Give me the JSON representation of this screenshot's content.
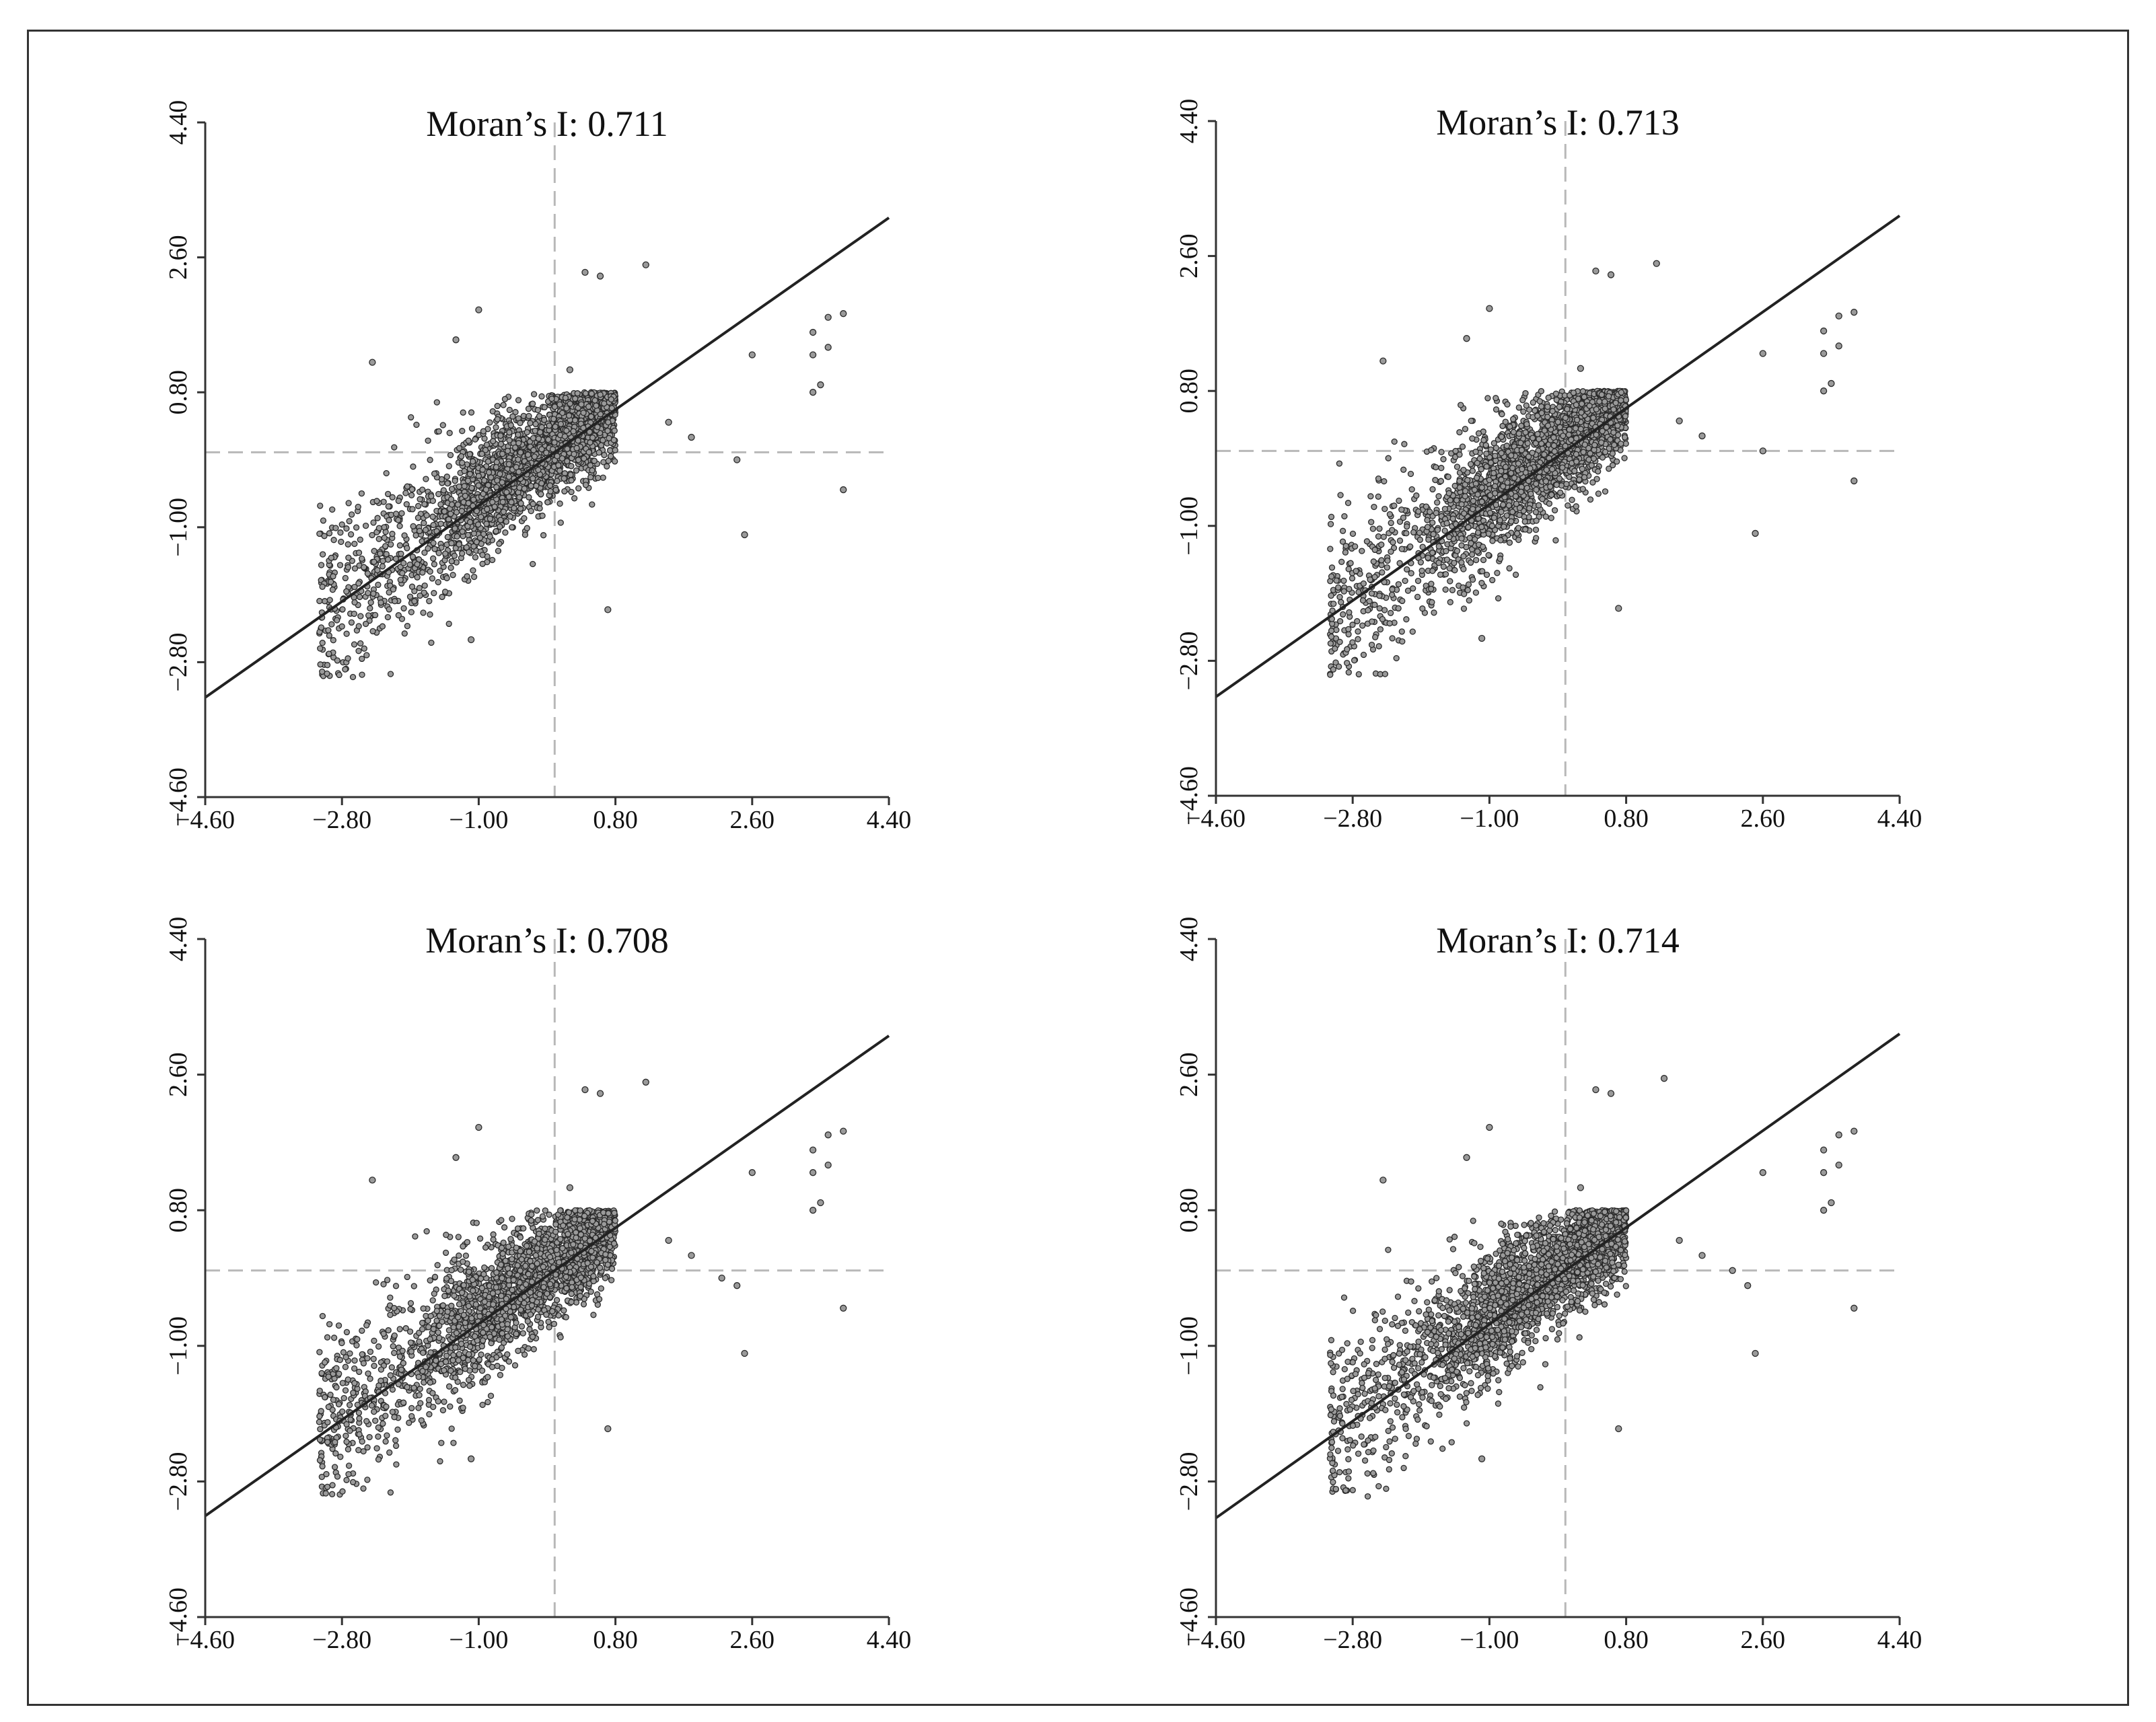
{
  "chart_data": [
    {
      "type": "scatter",
      "title": "Moran’s I: 0.711",
      "xlabel": "",
      "ylabel": "",
      "xlim": [
        -4.6,
        4.4
      ],
      "ylim": [
        -4.6,
        4.4
      ],
      "xticks": [
        "−4.60",
        "−2.80",
        "−1.00",
        "0.80",
        "2.60",
        "4.40"
      ],
      "yticks": [
        "−4.60",
        "−2.80",
        "−1.00",
        "0.80",
        "2.60",
        "4.40"
      ],
      "reference_lines": {
        "x": 0,
        "y": 0,
        "style": "dashed"
      },
      "fit_line": {
        "slope": 0.711,
        "intercept": 0
      },
      "outliers": [
        [
          0.4,
          2.4
        ],
        [
          0.6,
          2.35
        ],
        [
          1.2,
          2.5
        ],
        [
          -1.0,
          1.9
        ],
        [
          -1.3,
          1.5
        ],
        [
          0.2,
          1.1
        ],
        [
          -2.4,
          1.2
        ],
        [
          1.5,
          0.4
        ],
        [
          1.8,
          0.2
        ],
        [
          2.4,
          -0.1
        ],
        [
          2.6,
          1.3
        ],
        [
          3.4,
          1.6
        ],
        [
          3.6,
          1.8
        ],
        [
          3.8,
          1.85
        ],
        [
          3.4,
          1.3
        ],
        [
          3.6,
          1.4
        ],
        [
          3.4,
          0.8
        ],
        [
          3.5,
          0.9
        ],
        [
          3.8,
          -0.5
        ],
        [
          2.5,
          -1.1
        ],
        [
          -1.1,
          -2.5
        ],
        [
          0.7,
          -2.1
        ]
      ],
      "grid": false,
      "legend": "none"
    },
    {
      "type": "scatter",
      "title": "Moran’s I: 0.713",
      "xlabel": "",
      "ylabel": "",
      "xlim": [
        -4.6,
        4.4
      ],
      "ylim": [
        -4.6,
        4.4
      ],
      "xticks": [
        "−4.60",
        "−2.80",
        "−1.00",
        "0.80",
        "2.60",
        "4.40"
      ],
      "yticks": [
        "−4.60",
        "−2.80",
        "−1.00",
        "0.80",
        "2.60",
        "4.40"
      ],
      "reference_lines": {
        "x": 0,
        "y": 0,
        "style": "dashed"
      },
      "fit_line": {
        "slope": 0.713,
        "intercept": 0
      },
      "outliers": [
        [
          0.4,
          2.4
        ],
        [
          0.6,
          2.35
        ],
        [
          1.2,
          2.5
        ],
        [
          -1.0,
          1.9
        ],
        [
          -1.3,
          1.5
        ],
        [
          0.2,
          1.1
        ],
        [
          -2.4,
          1.2
        ],
        [
          1.5,
          0.4
        ],
        [
          1.8,
          0.2
        ],
        [
          2.6,
          0.0
        ],
        [
          2.6,
          1.3
        ],
        [
          3.4,
          1.6
        ],
        [
          3.6,
          1.8
        ],
        [
          3.8,
          1.85
        ],
        [
          3.4,
          1.3
        ],
        [
          3.6,
          1.4
        ],
        [
          3.4,
          0.8
        ],
        [
          3.5,
          0.9
        ],
        [
          3.8,
          -0.4
        ],
        [
          2.5,
          -1.1
        ],
        [
          -1.1,
          -2.5
        ],
        [
          0.7,
          -2.1
        ]
      ],
      "grid": false,
      "legend": "none"
    },
    {
      "type": "scatter",
      "title": "Moran’s I: 0.708",
      "xlabel": "",
      "ylabel": "",
      "xlim": [
        -4.6,
        4.4
      ],
      "ylim": [
        -4.6,
        4.4
      ],
      "xticks": [
        "−4.60",
        "−2.80",
        "−1.00",
        "0.80",
        "2.60",
        "4.40"
      ],
      "yticks": [
        "−4.60",
        "−2.80",
        "−1.00",
        "0.80",
        "2.60",
        "4.40"
      ],
      "reference_lines": {
        "x": 0,
        "y": 0,
        "style": "dashed"
      },
      "fit_line": {
        "slope": 0.708,
        "intercept": 0
      },
      "outliers": [
        [
          0.4,
          2.4
        ],
        [
          0.6,
          2.35
        ],
        [
          1.2,
          2.5
        ],
        [
          -1.0,
          1.9
        ],
        [
          -1.3,
          1.5
        ],
        [
          0.2,
          1.1
        ],
        [
          -2.4,
          1.2
        ],
        [
          1.5,
          0.4
        ],
        [
          1.8,
          0.2
        ],
        [
          2.2,
          -0.1
        ],
        [
          2.4,
          -0.2
        ],
        [
          2.6,
          1.3
        ],
        [
          3.4,
          1.6
        ],
        [
          3.6,
          1.8
        ],
        [
          3.8,
          1.85
        ],
        [
          3.4,
          1.3
        ],
        [
          3.6,
          1.4
        ],
        [
          3.4,
          0.8
        ],
        [
          3.5,
          0.9
        ],
        [
          3.8,
          -0.5
        ],
        [
          2.5,
          -1.1
        ],
        [
          -1.1,
          -2.5
        ],
        [
          0.7,
          -2.1
        ]
      ],
      "grid": false,
      "legend": "none"
    },
    {
      "type": "scatter",
      "title": "Moran’s I: 0.714",
      "xlabel": "",
      "ylabel": "",
      "xlim": [
        -4.6,
        4.4
      ],
      "ylim": [
        -4.6,
        4.4
      ],
      "xticks": [
        "−4.60",
        "−2.80",
        "−1.00",
        "0.80",
        "2.60",
        "4.40"
      ],
      "yticks": [
        "−4.60",
        "−2.80",
        "−1.00",
        "0.80",
        "2.60",
        "4.40"
      ],
      "reference_lines": {
        "x": 0,
        "y": 0,
        "style": "dashed"
      },
      "fit_line": {
        "slope": 0.714,
        "intercept": 0
      },
      "outliers": [
        [
          0.4,
          2.4
        ],
        [
          0.6,
          2.35
        ],
        [
          1.3,
          2.55
        ],
        [
          -1.0,
          1.9
        ],
        [
          -1.3,
          1.5
        ],
        [
          0.2,
          1.1
        ],
        [
          -2.4,
          1.2
        ],
        [
          1.5,
          0.4
        ],
        [
          1.8,
          0.2
        ],
        [
          2.2,
          0.0
        ],
        [
          2.4,
          -0.2
        ],
        [
          2.6,
          1.3
        ],
        [
          3.4,
          1.6
        ],
        [
          3.6,
          1.8
        ],
        [
          3.8,
          1.85
        ],
        [
          3.4,
          1.3
        ],
        [
          3.6,
          1.4
        ],
        [
          3.4,
          0.8
        ],
        [
          3.5,
          0.9
        ],
        [
          3.8,
          -0.5
        ],
        [
          2.5,
          -1.1
        ],
        [
          -1.1,
          -2.5
        ],
        [
          0.7,
          -2.1
        ]
      ],
      "grid": false,
      "legend": "none"
    }
  ]
}
